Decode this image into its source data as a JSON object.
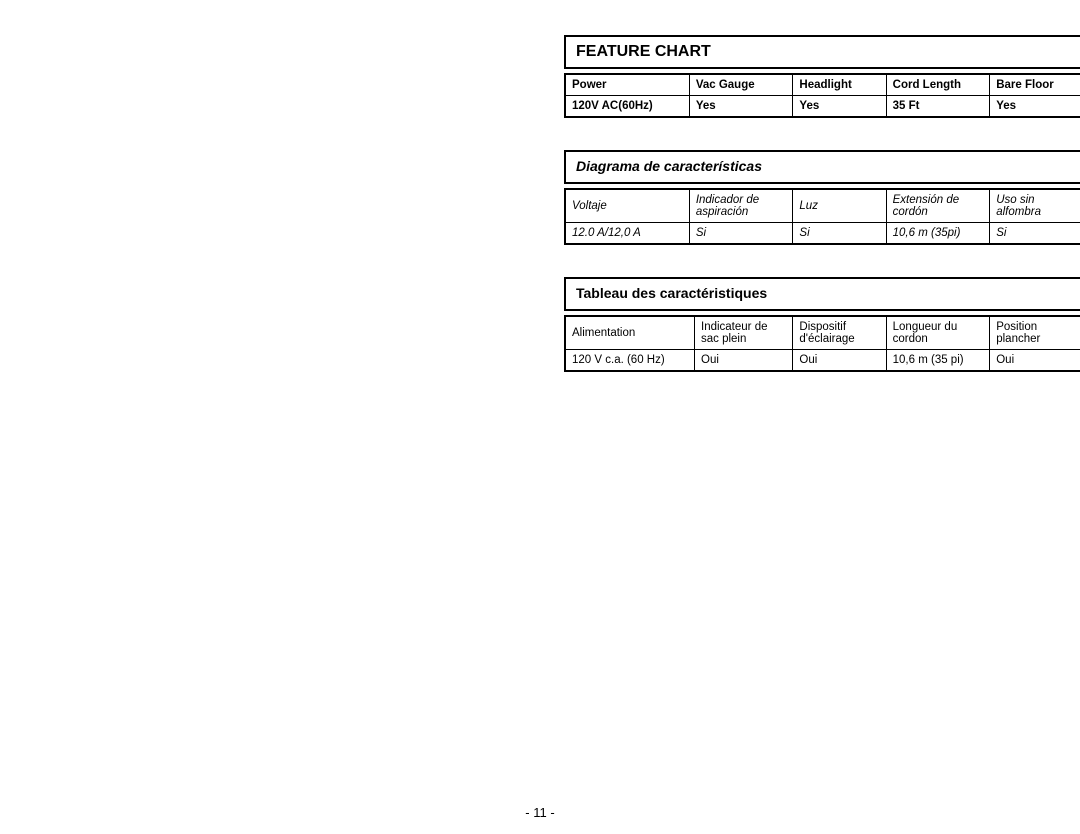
{
  "sections": [
    {
      "title": "FEATURE CHART",
      "titleStyle": "bold",
      "rowStyle": "bold-row",
      "headers": [
        "Power",
        "Vac Gauge",
        "Headlight",
        "Cord Length",
        "Bare Floor"
      ],
      "values": [
        "120V AC(60Hz)",
        "Yes",
        "Yes",
        "35 Ft",
        "Yes"
      ]
    },
    {
      "title": "Diagrama de características",
      "titleStyle": "italic",
      "rowStyle": "italic-row",
      "headers": [
        "Voltaje",
        "Indicador de aspiración",
        "Luz",
        "Extensión de cordón",
        "Uso sin alfombra"
      ],
      "values": [
        "12.0 A/12,0 A",
        "Si",
        "Si",
        "10,6 m (35pi)",
        "Si"
      ]
    },
    {
      "title": "Tableau des caractéristiques",
      "titleStyle": "norm",
      "rowStyle": "",
      "headers": [
        "Alimentation",
        "Indicateur de sac plein",
        "Dispositif d'éclairage",
        "Longueur du cordon",
        "Position plancher"
      ],
      "values": [
        "120 V c.a. (60 Hz)",
        "Oui",
        "Oui",
        "10,6 m (35 pi)",
        "Oui"
      ]
    }
  ],
  "pageNumber": "- 11 -",
  "colors": {
    "border": "#000000",
    "background": "#ffffff",
    "text": "#000000"
  },
  "colClasses": [
    "col1",
    "col2",
    "col3",
    "col4",
    "col5"
  ],
  "frColClasses": [
    "fc1",
    "fc2",
    "fc3",
    "fc4",
    "fc5"
  ]
}
